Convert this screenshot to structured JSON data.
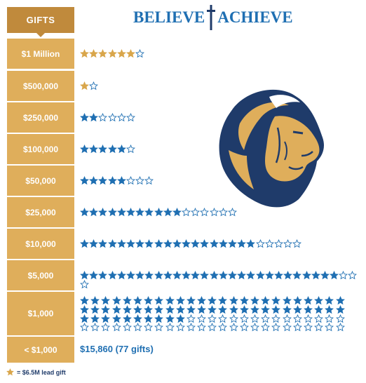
{
  "brand": {
    "word1": "BELIEVE",
    "word2": "ACHIEVE"
  },
  "header": {
    "gifts": "GIFTS"
  },
  "tiers": [
    {
      "label": "$1 Million",
      "filled": 6,
      "gold": 6,
      "empty": 1,
      "rows": 1
    },
    {
      "label": "$500,000",
      "filled": 1,
      "gold": 1,
      "empty": 1,
      "rows": 1
    },
    {
      "label": "$250,000",
      "filled": 2,
      "gold": 0,
      "empty": 4,
      "rows": 1
    },
    {
      "label": "$100,000",
      "filled": 5,
      "gold": 0,
      "empty": 1,
      "rows": 1
    },
    {
      "label": "$50,000",
      "filled": 5,
      "gold": 0,
      "empty": 3,
      "rows": 1
    },
    {
      "label": "$25,000",
      "filled": 11,
      "gold": 0,
      "empty": 6,
      "rows": 1
    },
    {
      "label": "$10,000",
      "filled": 19,
      "gold": 0,
      "empty": 5,
      "rows": 1
    },
    {
      "label": "$5,000",
      "filled": 28,
      "gold": 0,
      "empty": 3,
      "rows": 1
    },
    {
      "label": "$1,000",
      "filled": 60,
      "gold": 0,
      "empty": 40,
      "rows": 4
    }
  ],
  "below_1000": {
    "label": "< $1,000",
    "text": "$15,860 (77 gifts)"
  },
  "legend": {
    "text": "= $6.5M lead gift"
  },
  "colors": {
    "gold_header": "#c08a3c",
    "gold_cell": "#dfae5b",
    "gold_star": "#d9a64b",
    "blue_star": "#1f6fb2",
    "navy": "#1f3b6a"
  }
}
